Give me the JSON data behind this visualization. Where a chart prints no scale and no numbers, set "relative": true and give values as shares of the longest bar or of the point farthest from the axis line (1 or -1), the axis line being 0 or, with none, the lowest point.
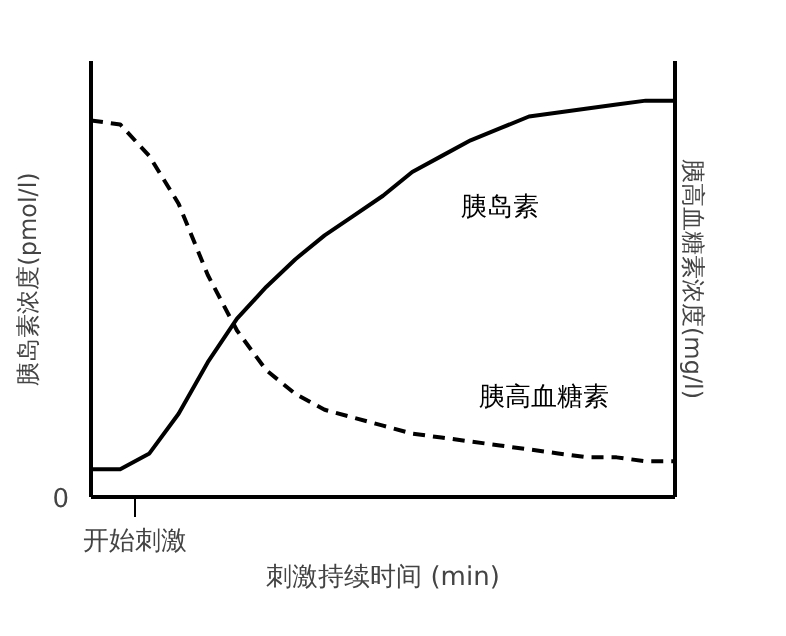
{
  "chart_data": {
    "type": "line",
    "relative": true,
    "ylabel": "胰岛素浓度(pmol/l)",
    "y2label": "胰高血糖素浓度(mg/l)",
    "xlabel": "刺激持续时间 (min)",
    "annotations": [
      "0",
      "开始刺激"
    ],
    "categories": [
      null,
      null,
      null,
      null,
      null,
      null,
      null,
      null,
      null,
      null,
      null,
      null,
      null,
      null,
      null,
      null,
      null,
      null,
      null,
      null,
      null
    ],
    "grid": false,
    "marker": "none",
    "series": [
      {
        "name": "胰岛素",
        "color": "#000000",
        "line_style": "solid",
        "values": [
          0.07,
          0.07,
          0.11,
          0.21,
          0.34,
          0.45,
          0.53,
          0.6,
          0.66,
          0.71,
          0.76,
          0.82,
          0.86,
          0.9,
          0.93,
          0.96,
          0.97,
          0.98,
          0.99,
          1,
          1
        ]
      },
      {
        "name": "胰高血糖素",
        "color": "#000000",
        "line_style": "dashed",
        "values": [
          0.95,
          0.94,
          0.86,
          0.74,
          0.56,
          0.42,
          0.32,
          0.26,
          0.22,
          0.2,
          0.18,
          0.16,
          0.15,
          0.14,
          0.13,
          0.12,
          0.11,
          0.1,
          0.1,
          0.09,
          0.09
        ]
      }
    ]
  }
}
